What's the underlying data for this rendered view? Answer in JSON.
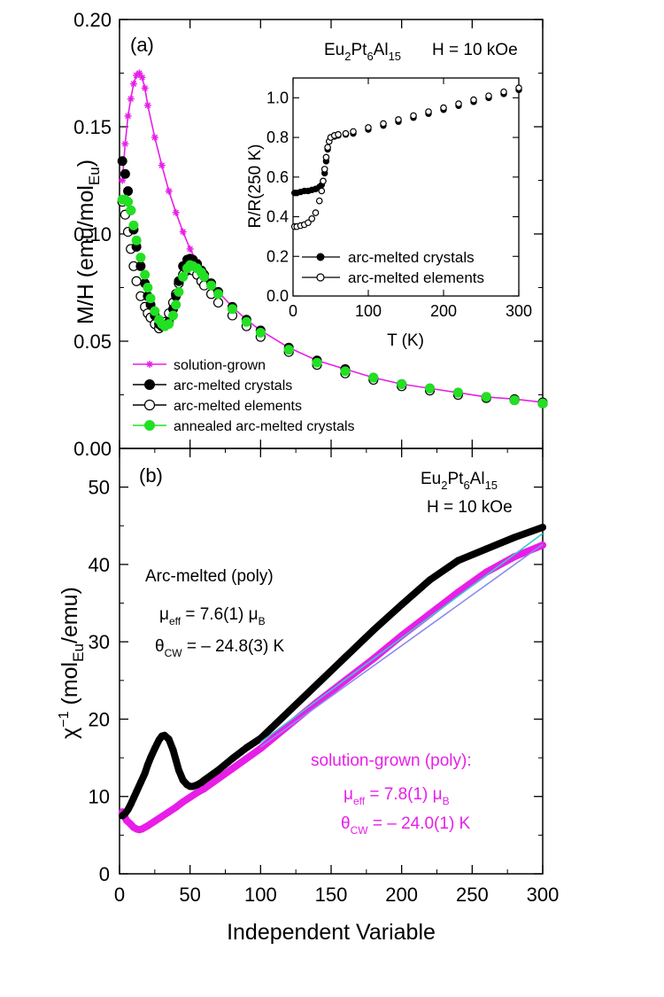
{
  "chart_data": [
    {
      "panel": "a",
      "type": "scatter",
      "panel_label": "(a)",
      "compound": {
        "base": "Eu",
        "s1": "2",
        "mid1": "Pt",
        "s2": "6",
        "mid2": "Al",
        "s3": "15"
      },
      "field_label": "H = 10 kOe",
      "ylabel": {
        "pre": "M/H (emu/mol",
        "sub": "Eu",
        "post": ")"
      },
      "xlim": [
        0,
        300
      ],
      "ylim": [
        0,
        0.2
      ],
      "yticks": [
        "0.00",
        "0.05",
        "0.10",
        "0.15",
        "0.20"
      ],
      "ytick_values": [
        0,
        0.05,
        0.1,
        0.15,
        0.2
      ],
      "legend": [
        {
          "label": "solution-grown",
          "color": "#e81ee8",
          "marker": "star"
        },
        {
          "label": "arc-melted crystals",
          "color": "#000000",
          "marker": "filled-circle"
        },
        {
          "label": "arc-melted elements",
          "color": "#000000",
          "marker": "open-circle"
        },
        {
          "label": "annealed arc-melted crystals",
          "color": "#22e022",
          "marker": "filled-circle"
        }
      ],
      "series": [
        {
          "name": "solution-grown",
          "x": [
            2,
            4,
            6,
            8,
            10,
            12,
            14,
            16,
            18,
            20,
            25,
            30,
            35,
            40,
            45,
            50,
            55,
            60,
            70,
            80,
            90,
            100,
            120,
            140,
            160,
            180,
            200,
            220,
            240,
            260,
            280,
            300
          ],
          "y": [
            0.125,
            0.142,
            0.155,
            0.163,
            0.17,
            0.174,
            0.175,
            0.173,
            0.168,
            0.16,
            0.145,
            0.132,
            0.12,
            0.11,
            0.101,
            0.093,
            0.087,
            0.082,
            0.073,
            0.066,
            0.06,
            0.055,
            0.047,
            0.041,
            0.037,
            0.033,
            0.03,
            0.028,
            0.026,
            0.024,
            0.023,
            0.0215
          ]
        },
        {
          "name": "arc-melted crystals",
          "x": [
            2,
            4,
            6,
            8,
            10,
            12,
            15,
            18,
            20,
            22,
            25,
            28,
            30,
            32,
            35,
            38,
            40,
            42,
            45,
            48,
            50,
            52,
            55,
            58,
            60,
            65,
            70,
            80,
            90,
            100,
            120,
            140,
            160,
            180,
            200,
            220,
            240,
            260,
            280,
            300
          ],
          "y": [
            0.134,
            0.128,
            0.12,
            0.111,
            0.102,
            0.094,
            0.085,
            0.077,
            0.071,
            0.067,
            0.062,
            0.058,
            0.057,
            0.057,
            0.059,
            0.065,
            0.071,
            0.078,
            0.085,
            0.088,
            0.0885,
            0.088,
            0.086,
            0.083,
            0.081,
            0.077,
            0.073,
            0.066,
            0.06,
            0.055,
            0.047,
            0.041,
            0.037,
            0.033,
            0.03,
            0.028,
            0.026,
            0.024,
            0.023,
            0.0215
          ]
        },
        {
          "name": "arc-melted elements",
          "x": [
            2,
            4,
            6,
            8,
            10,
            12,
            15,
            18,
            20,
            22,
            25,
            28,
            30,
            32,
            35,
            38,
            40,
            42,
            45,
            48,
            50,
            52,
            55,
            58,
            60,
            65,
            70,
            80,
            90,
            100,
            120,
            140,
            160,
            180,
            200,
            220,
            240,
            260,
            280,
            300
          ],
          "y": [
            0.115,
            0.109,
            0.101,
            0.093,
            0.085,
            0.078,
            0.071,
            0.066,
            0.063,
            0.061,
            0.058,
            0.056,
            0.057,
            0.059,
            0.063,
            0.068,
            0.072,
            0.077,
            0.081,
            0.083,
            0.0835,
            0.083,
            0.081,
            0.078,
            0.076,
            0.072,
            0.068,
            0.062,
            0.057,
            0.052,
            0.045,
            0.039,
            0.035,
            0.032,
            0.029,
            0.027,
            0.025,
            0.0235,
            0.0225,
            0.021
          ]
        },
        {
          "name": "annealed arc-melted crystals",
          "x": [
            2,
            4,
            6,
            8,
            10,
            12,
            15,
            18,
            20,
            22,
            25,
            28,
            30,
            32,
            35,
            38,
            40,
            42,
            45,
            48,
            50,
            52,
            55,
            58,
            60,
            65,
            70,
            80,
            90,
            100,
            120,
            140,
            160,
            180,
            200,
            220,
            240,
            260,
            280,
            300
          ],
          "y": [
            0.116,
            0.116,
            0.115,
            0.111,
            0.104,
            0.097,
            0.089,
            0.081,
            0.075,
            0.07,
            0.064,
            0.06,
            0.058,
            0.057,
            0.058,
            0.062,
            0.067,
            0.073,
            0.08,
            0.084,
            0.0855,
            0.085,
            0.084,
            0.082,
            0.08,
            0.076,
            0.072,
            0.065,
            0.059,
            0.054,
            0.046,
            0.04,
            0.036,
            0.033,
            0.03,
            0.028,
            0.026,
            0.024,
            0.0225,
            0.021
          ]
        }
      ]
    },
    {
      "panel": "a-inset",
      "type": "scatter",
      "xlabel": "T (K)",
      "ylabel": "R/R(250 K)",
      "xlim": [
        0,
        300
      ],
      "ylim": [
        0,
        1.1
      ],
      "xticks": [
        "0",
        "100",
        "200",
        "300"
      ],
      "xtick_values": [
        0,
        100,
        200,
        300
      ],
      "yticks": [
        "0.0",
        "0.2",
        "0.4",
        "0.6",
        "0.8",
        "1.0"
      ],
      "ytick_values": [
        0,
        0.2,
        0.4,
        0.6,
        0.8,
        1.0
      ],
      "legend": [
        {
          "label": "arc-melted crystals",
          "marker": "filled-circle"
        },
        {
          "label": "arc-melted elements",
          "marker": "open-circle"
        }
      ],
      "series": [
        {
          "name": "arc-melted crystals",
          "x": [
            2,
            5,
            10,
            15,
            20,
            25,
            30,
            35,
            38,
            40,
            42,
            44,
            46,
            48,
            50,
            55,
            60,
            70,
            80,
            100,
            120,
            140,
            160,
            180,
            200,
            220,
            240,
            260,
            280,
            300
          ],
          "y": [
            0.52,
            0.52,
            0.525,
            0.53,
            0.53,
            0.535,
            0.54,
            0.55,
            0.56,
            0.58,
            0.62,
            0.68,
            0.74,
            0.78,
            0.8,
            0.805,
            0.81,
            0.815,
            0.82,
            0.84,
            0.86,
            0.88,
            0.9,
            0.92,
            0.94,
            0.96,
            0.98,
            1.0,
            1.02,
            1.04
          ]
        },
        {
          "name": "arc-melted elements",
          "x": [
            2,
            5,
            10,
            15,
            20,
            25,
            30,
            35,
            38,
            40,
            42,
            44,
            46,
            48,
            50,
            55,
            60,
            70,
            80,
            100,
            120,
            140,
            160,
            180,
            200,
            220,
            240,
            260,
            280,
            300
          ],
          "y": [
            0.35,
            0.35,
            0.355,
            0.36,
            0.37,
            0.39,
            0.42,
            0.48,
            0.53,
            0.58,
            0.64,
            0.7,
            0.75,
            0.78,
            0.8,
            0.81,
            0.815,
            0.82,
            0.83,
            0.85,
            0.87,
            0.89,
            0.91,
            0.93,
            0.95,
            0.97,
            0.99,
            1.01,
            1.03,
            1.05
          ]
        }
      ]
    },
    {
      "panel": "b",
      "type": "scatter",
      "panel_label": "(b)",
      "compound": {
        "base": "Eu",
        "s1": "2",
        "mid1": "Pt",
        "s2": "6",
        "mid2": "Al",
        "s3": "15"
      },
      "field_label": "H = 10 kOe",
      "xlabel": "Independent Variable",
      "ylabel": {
        "pre": "χ",
        "sup": "−1",
        "mid": " (mol",
        "sub": "Eu",
        "post": "/emu)"
      },
      "xlim": [
        0,
        300
      ],
      "ylim": [
        0,
        55
      ],
      "xticks": [
        "0",
        "50",
        "100",
        "150",
        "200",
        "250",
        "300"
      ],
      "xtick_values": [
        0,
        50,
        100,
        150,
        200,
        250,
        300
      ],
      "yticks": [
        "0",
        "10",
        "20",
        "30",
        "40",
        "50"
      ],
      "ytick_values": [
        0,
        10,
        20,
        30,
        40,
        50
      ],
      "annotations": {
        "arc_title": "Arc-melted (poly)",
        "arc_mu": {
          "sym": "μ",
          "sub": "eff",
          "val": " = 7.6(1) ",
          "unit": "μ",
          "unit_sub": "B"
        },
        "arc_theta": {
          "sym": "θ",
          "sub": "CW",
          "val": " = – 24.8(3) K"
        },
        "sol_title": "solution-grown (poly):",
        "sol_mu": {
          "sym": "μ",
          "sub": "eff",
          "val": " = 7.8(1) ",
          "unit": "μ",
          "unit_sub": "B"
        },
        "sol_theta": {
          "sym": "θ",
          "sub": "CW",
          "val": " = – 24.0(1) K"
        }
      },
      "series": [
        {
          "name": "arc-melted crystals",
          "color": "#000000",
          "x": [
            2,
            4,
            6,
            8,
            10,
            12,
            15,
            18,
            20,
            22,
            25,
            28,
            30,
            32,
            35,
            38,
            40,
            42,
            45,
            48,
            50,
            52,
            55,
            58,
            60,
            70,
            80,
            90,
            100,
            120,
            140,
            160,
            180,
            200,
            220,
            240,
            260,
            280,
            300
          ],
          "y": [
            7.5,
            7.8,
            8.3,
            9.0,
            9.8,
            10.6,
            11.8,
            13.0,
            14.1,
            15.0,
            16.2,
            17.3,
            17.8,
            17.9,
            17.4,
            16.0,
            14.7,
            13.4,
            12.1,
            11.5,
            11.3,
            11.3,
            11.5,
            11.8,
            12.1,
            13.4,
            14.9,
            16.3,
            17.5,
            21.0,
            24.5,
            28.0,
            31.5,
            34.8,
            38.0,
            40.5,
            42.0,
            43.5,
            44.8
          ]
        },
        {
          "name": "solution-grown",
          "color": "#e81ee8",
          "x": [
            2,
            5,
            8,
            10,
            12,
            14,
            16,
            18,
            20,
            25,
            30,
            35,
            40,
            45,
            50,
            55,
            60,
            70,
            80,
            90,
            100,
            120,
            140,
            160,
            180,
            200,
            220,
            240,
            260,
            280,
            300
          ],
          "y": [
            8.0,
            6.9,
            6.4,
            6.0,
            5.8,
            5.7,
            5.8,
            6.0,
            6.2,
            6.8,
            7.4,
            8.0,
            8.6,
            9.3,
            9.9,
            10.5,
            11.0,
            12.3,
            13.6,
            14.9,
            16.2,
            19.2,
            22.2,
            25.0,
            27.8,
            30.8,
            33.6,
            36.4,
            39.0,
            41.0,
            42.5
          ]
        },
        {
          "name": "fit-arc",
          "color": "#33cccc",
          "x": [
            100,
            300
          ],
          "y": [
            17.0,
            44.0
          ]
        },
        {
          "name": "fit-sol",
          "color": "#8a8aee",
          "x": [
            100,
            300
          ],
          "y": [
            16.4,
            42.6
          ]
        }
      ]
    }
  ]
}
